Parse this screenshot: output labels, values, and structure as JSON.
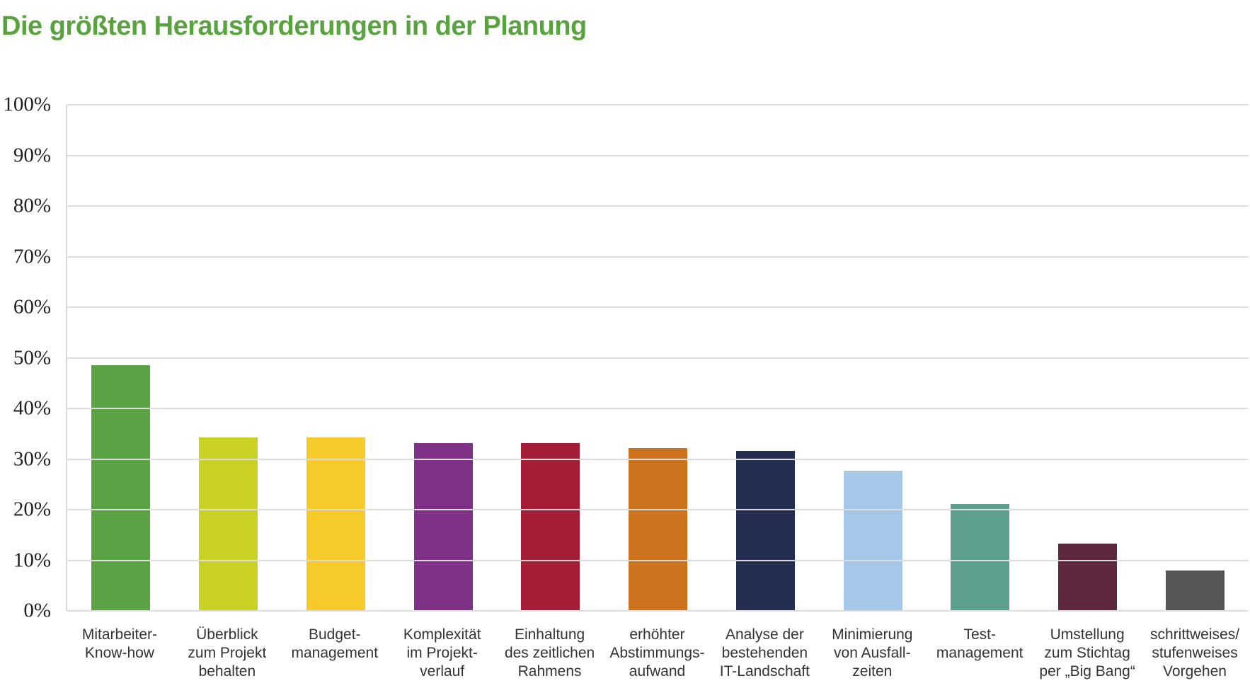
{
  "header": {
    "title": "Die größten Herausforderungen in der Planung",
    "title_color": "#57a33c"
  },
  "styles": {
    "gridline_color": "#dcdcdc",
    "axis_line_color": "#d9d9d9",
    "tick_label_color": "#1f1f1f",
    "category_label_color": "#333333",
    "background": "#ffffff"
  },
  "chart_data": {
    "type": "bar",
    "title": "Die größten Herausforderungen in der Planung",
    "xlabel": "",
    "ylabel": "",
    "ylim": [
      0,
      100
    ],
    "grid": true,
    "legend": "none",
    "yticks": [
      {
        "value": 100,
        "label": "100%"
      },
      {
        "value": 90,
        "label": "90%"
      },
      {
        "value": 80,
        "label": "80%"
      },
      {
        "value": 70,
        "label": "70%"
      },
      {
        "value": 60,
        "label": "60%"
      },
      {
        "value": 50,
        "label": "50%"
      },
      {
        "value": 40,
        "label": "40%"
      },
      {
        "value": 30,
        "label": "30%"
      },
      {
        "value": 20,
        "label": "20%"
      },
      {
        "value": 10,
        "label": "10%"
      },
      {
        "value": 0,
        "label": "0%"
      }
    ],
    "categories": [
      "Mitarbeiter-Know-how",
      "Überblick zum Projekt behalten",
      "Budget-management",
      "Komplexität im Projekt-verlauf",
      "Einhaltung des zeitlichen Rahmens",
      "erhöhter Abstimmungs-aufwand",
      "Analyse der bestehenden IT-Landschaft",
      "Minimierung von Ausfall-zeiten",
      "Test-management",
      "Umstellung zum Stichtag per „Big Bang“",
      "schrittweises/stufenweises Vorgehen"
    ],
    "category_label_lines": [
      [
        "Mitarbeiter-",
        "Know-how"
      ],
      [
        "Überblick",
        "zum Projekt",
        "behalten"
      ],
      [
        "Budget-",
        "management"
      ],
      [
        "Komplexität",
        "im Projekt-",
        "verlauf"
      ],
      [
        "Einhaltung",
        "des zeitlichen",
        "Rahmens"
      ],
      [
        "erhöhter",
        "Abstimmungs-",
        "aufwand"
      ],
      [
        "Analyse der",
        "bestehenden",
        "IT-Landschaft"
      ],
      [
        "Minimierung",
        "von Ausfall-",
        "zeiten"
      ],
      [
        "Test-",
        "management"
      ],
      [
        "Umstellung",
        "zum Stichtag",
        "per „Big Bang“"
      ],
      [
        "schrittweises/",
        "stufenweises",
        "Vorgehen"
      ]
    ],
    "values": [
      48.6,
      34.3,
      34.3,
      33.1,
      33.1,
      32.2,
      31.6,
      27.7,
      21.1,
      13.3,
      8.0
    ],
    "bar_colors": [
      "#5aa244",
      "#c8d124",
      "#f6ca28",
      "#7e3187",
      "#a61d38",
      "#cb741d",
      "#242e50",
      "#a6c9e9",
      "#5d9f8e",
      "#5d283d",
      "#565656"
    ]
  }
}
